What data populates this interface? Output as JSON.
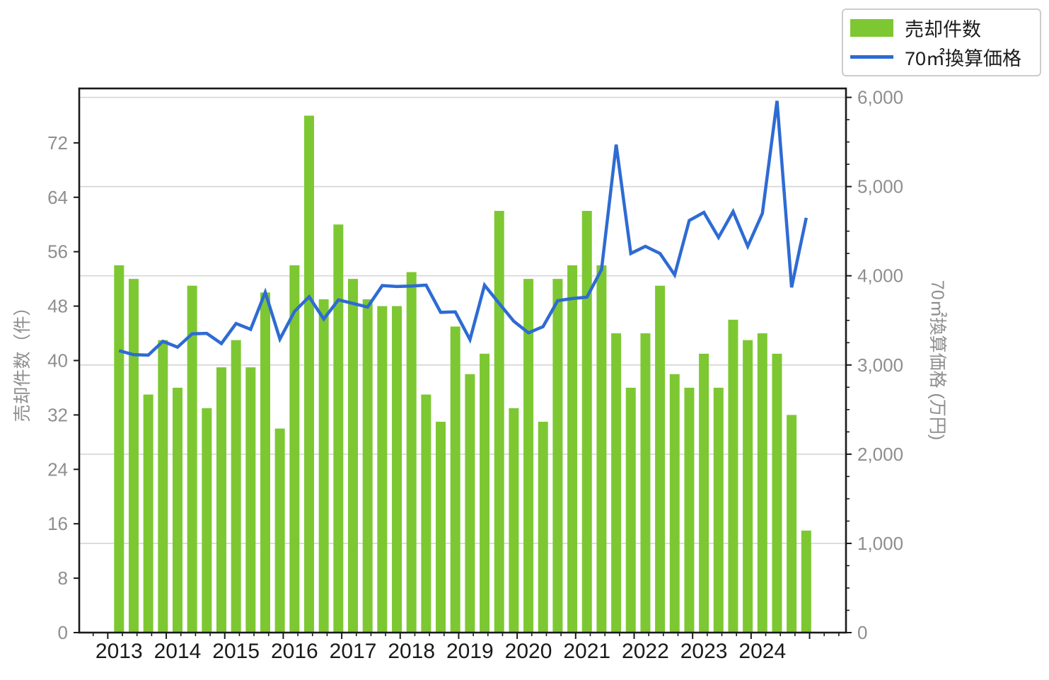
{
  "chart_data": {
    "type": "combo",
    "title": "",
    "categories": [
      "2013Q1",
      "2013Q2",
      "2013Q3",
      "2013Q4",
      "2014Q1",
      "2014Q2",
      "2014Q3",
      "2014Q4",
      "2015Q1",
      "2015Q2",
      "2015Q3",
      "2015Q4",
      "2016Q1",
      "2016Q2",
      "2016Q3",
      "2016Q4",
      "2017Q1",
      "2017Q2",
      "2017Q3",
      "2017Q4",
      "2018Q1",
      "2018Q2",
      "2018Q3",
      "2018Q4",
      "2019Q1",
      "2019Q2",
      "2019Q3",
      "2019Q4",
      "2020Q1",
      "2020Q2",
      "2020Q3",
      "2020Q4",
      "2021Q1",
      "2021Q2",
      "2021Q3",
      "2021Q4",
      "2022Q1",
      "2022Q2",
      "2022Q3",
      "2022Q4",
      "2023Q1",
      "2023Q2",
      "2023Q3",
      "2023Q4",
      "2024Q1",
      "2024Q2",
      "2024Q3",
      "2024Q4"
    ],
    "x_year_labels": [
      "2013",
      "2014",
      "2015",
      "2016",
      "2017",
      "2018",
      "2019",
      "2020",
      "2021",
      "2022",
      "2023",
      "2024"
    ],
    "series": [
      {
        "name": "売却件数",
        "type": "bar",
        "axis": "left",
        "color": "#7dc832",
        "values": [
          54,
          52,
          35,
          43,
          36,
          51,
          33,
          39,
          43,
          39,
          50,
          30,
          54,
          76,
          49,
          60,
          52,
          49,
          48,
          48,
          53,
          35,
          31,
          45,
          38,
          41,
          62,
          33,
          52,
          31,
          52,
          54,
          62,
          54,
          44,
          36,
          44,
          51,
          38,
          36,
          41,
          36,
          46,
          43,
          44,
          41,
          32,
          15
        ]
      },
      {
        "name": "70㎡換算価格",
        "type": "line",
        "axis": "right",
        "color": "#2e6bd3",
        "values": [
          3160,
          3115,
          3110,
          3265,
          3200,
          3350,
          3355,
          3240,
          3465,
          3400,
          3815,
          3290,
          3600,
          3765,
          3515,
          3730,
          3690,
          3650,
          3890,
          3880,
          3885,
          3895,
          3590,
          3595,
          3285,
          3895,
          3690,
          3490,
          3360,
          3430,
          3720,
          3745,
          3760,
          4070,
          5470,
          4250,
          4330,
          4250,
          4010,
          4620,
          4710,
          4430,
          4720,
          4330,
          4700,
          5960,
          3870,
          4650
        ]
      }
    ],
    "left_axis": {
      "label": "売却件数（件）",
      "min": 0,
      "max": 80,
      "ticks": [
        0,
        8,
        16,
        24,
        32,
        40,
        48,
        56,
        64,
        72
      ],
      "tick_labels": [
        "0",
        "8",
        "16",
        "24",
        "32",
        "40",
        "48",
        "56",
        "64",
        "72"
      ]
    },
    "right_axis": {
      "label": "70㎡換算価格 (万円)",
      "min": 0,
      "max": 6100,
      "minor_step": 250,
      "ticks": [
        0,
        1000,
        2000,
        3000,
        4000,
        5000,
        6000
      ],
      "tick_labels": [
        "0",
        "1,000",
        "2,000",
        "3,000",
        "4,000",
        "5,000",
        "6,000"
      ]
    },
    "legend": {
      "position": "upper-right-outside",
      "items": [
        "売却件数",
        "70㎡換算価格"
      ]
    },
    "grid": {
      "horizontal_at_right_axis_majors": true,
      "color": "#d9d9d9"
    },
    "colors": {
      "bar": "#7dc832",
      "line": "#2e6bd3",
      "tick_label": "#8e8e8e",
      "year_label": "#1a1a1a",
      "spine": "#1a1a1a",
      "grid": "#d9d9d9"
    }
  }
}
